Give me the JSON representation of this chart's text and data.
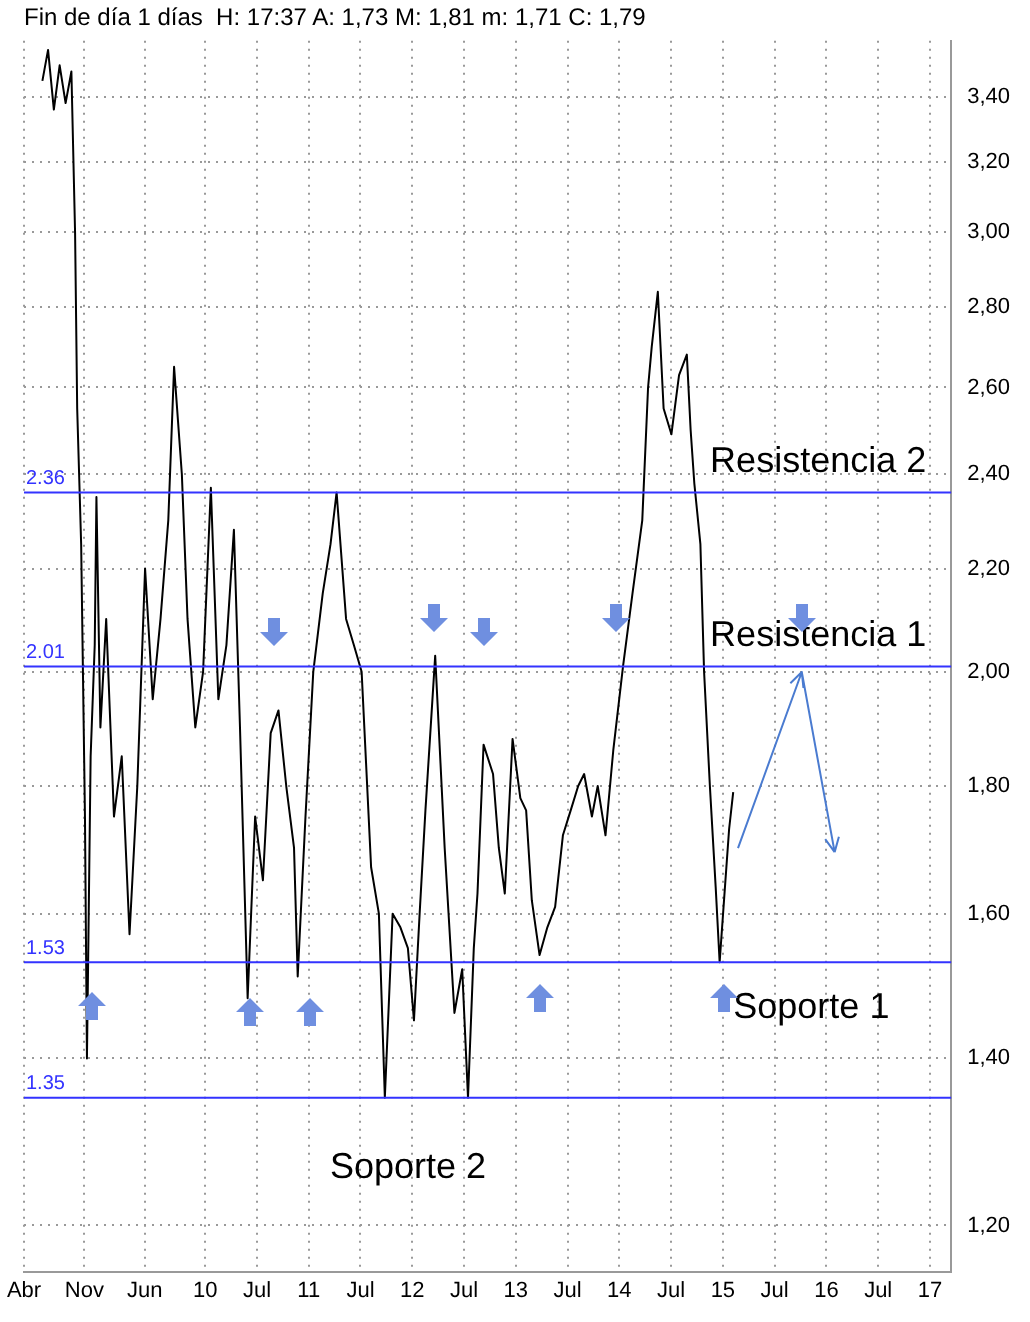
{
  "chart_data": {
    "type": "line",
    "title": "Fin de día 1 días  H: 17:37 A: 1,73 M: 1,81 m: 1,71 C: 1,79",
    "x": [
      "2008-06-05",
      "2008-06-25",
      "2008-07-15",
      "2008-08-05",
      "2008-08-26",
      "2008-09-16",
      "2008-09-29",
      "2008-10-06",
      "2008-10-20",
      "2008-11-03",
      "2008-11-10",
      "2008-11-23",
      "2008-12-07",
      "2008-12-13",
      "2008-12-27",
      "2009-01-17",
      "2009-02-14",
      "2009-03-11",
      "2009-04-08",
      "2009-05-05",
      "2009-06-02",
      "2009-06-29",
      "2009-07-26",
      "2009-08-23",
      "2009-09-13",
      "2009-10-10",
      "2009-10-30",
      "2009-11-27",
      "2009-12-24",
      "2010-01-21",
      "2010-02-17",
      "2010-03-15",
      "2010-04-11",
      "2010-05-02",
      "2010-05-29",
      "2010-06-25",
      "2010-07-22",
      "2010-08-19",
      "2010-09-16",
      "2010-10-13",
      "2010-11-10",
      "2010-11-23",
      "2010-12-20",
      "2011-01-17",
      "2011-02-20",
      "2011-03-17",
      "2011-04-08",
      "2011-05-11",
      "2011-06-08",
      "2011-07-05",
      "2011-08-08",
      "2011-09-05",
      "2011-09-26",
      "2011-10-23",
      "2011-11-20",
      "2011-12-16",
      "2012-01-07",
      "2012-01-27",
      "2012-02-17",
      "2012-03-21",
      "2012-04-24",
      "2012-05-28",
      "2012-06-25",
      "2012-07-15",
      "2012-08-05",
      "2012-08-18",
      "2012-09-09",
      "2012-10-12",
      "2012-11-02",
      "2012-11-23",
      "2012-12-20",
      "2013-01-17",
      "2013-02-07",
      "2013-02-27",
      "2013-03-24",
      "2013-04-21",
      "2013-05-18",
      "2013-06-15",
      "2013-07-12",
      "2013-08-08",
      "2013-08-29",
      "2013-09-26",
      "2013-10-16",
      "2013-11-13",
      "2013-12-10",
      "2014-01-14",
      "2014-02-17",
      "2014-03-21",
      "2014-04-11",
      "2014-04-24",
      "2014-05-15",
      "2014-06-05",
      "2014-07-02",
      "2014-07-29",
      "2014-08-26",
      "2014-09-09",
      "2014-09-22",
      "2014-10-13",
      "2014-10-26",
      "2014-11-16",
      "2014-12-06",
      "2014-12-20",
      "2015-01-10",
      "2015-01-23",
      "2015-02-07"
    ],
    "series": [
      {
        "color": "#000000",
        "values": [
          3.45,
          3.55,
          3.36,
          3.5,
          3.38,
          3.48,
          3.0,
          2.55,
          2.25,
          1.75,
          1.4,
          1.85,
          2.05,
          2.35,
          1.9,
          2.1,
          1.75,
          1.85,
          1.57,
          1.8,
          2.2,
          1.95,
          2.1,
          2.3,
          2.65,
          2.4,
          2.1,
          1.9,
          2.0,
          2.37,
          1.95,
          2.05,
          2.28,
          1.9,
          1.48,
          1.75,
          1.65,
          1.89,
          1.93,
          1.8,
          1.7,
          1.51,
          1.75,
          2.0,
          2.15,
          2.25,
          2.36,
          2.1,
          2.05,
          2.0,
          1.67,
          1.6,
          1.35,
          1.6,
          1.58,
          1.55,
          1.45,
          1.6,
          1.76,
          2.03,
          1.7,
          1.46,
          1.52,
          1.35,
          1.55,
          1.63,
          1.87,
          1.82,
          1.7,
          1.63,
          1.88,
          1.78,
          1.76,
          1.62,
          1.54,
          1.58,
          1.61,
          1.72,
          1.76,
          1.8,
          1.82,
          1.75,
          1.8,
          1.72,
          1.86,
          2.01,
          2.15,
          2.3,
          2.6,
          2.7,
          2.84,
          2.55,
          2.49,
          2.63,
          2.68,
          2.5,
          2.38,
          2.25,
          2.0,
          1.8,
          1.64,
          1.53,
          1.65,
          1.73,
          1.79
        ]
      }
    ],
    "xlim": [
      "2008-04-01",
      "2017-03-15"
    ],
    "xticks": [
      {
        "value": "2008-04",
        "label": "Abr"
      },
      {
        "value": "2008-11",
        "label": "Nov"
      },
      {
        "value": "2009-06",
        "label": "Jun"
      },
      {
        "value": "2010-01",
        "label": "10"
      },
      {
        "value": "2010-07",
        "label": "Jul"
      },
      {
        "value": "2011-01",
        "label": "11"
      },
      {
        "value": "2011-07",
        "label": "Jul"
      },
      {
        "value": "2012-01",
        "label": "12"
      },
      {
        "value": "2012-07",
        "label": "Jul"
      },
      {
        "value": "2013-01",
        "label": "13"
      },
      {
        "value": "2013-07",
        "label": "Jul"
      },
      {
        "value": "2014-01",
        "label": "14"
      },
      {
        "value": "2014-07",
        "label": "Jul"
      },
      {
        "value": "2015-01",
        "label": "15"
      },
      {
        "value": "2015-07",
        "label": "Jul"
      },
      {
        "value": "2016-01",
        "label": "16"
      },
      {
        "value": "2016-07",
        "label": "Jul"
      },
      {
        "value": "2017-01",
        "label": "17"
      }
    ],
    "ylim": [
      1.15,
      3.58
    ],
    "yticks": [
      {
        "value": 1.2,
        "label": "1,20"
      },
      {
        "value": 1.4,
        "label": "1,40"
      },
      {
        "value": 1.6,
        "label": "1,60"
      },
      {
        "value": 1.8,
        "label": "1,80"
      },
      {
        "value": 2.0,
        "label": "2,00"
      },
      {
        "value": 2.2,
        "label": "2,20"
      },
      {
        "value": 2.4,
        "label": "2,40"
      },
      {
        "value": 2.6,
        "label": "2,60"
      },
      {
        "value": 2.8,
        "label": "2,80"
      },
      {
        "value": 3.0,
        "label": "3,00"
      },
      {
        "value": 3.2,
        "label": "3,20"
      },
      {
        "value": 3.4,
        "label": "3,40"
      }
    ],
    "log": true,
    "grid": true,
    "marker": "none",
    "annotations": [
      {
        "text": "2.36",
        "y": 2.36
      },
      {
        "text": "2.01",
        "y": 2.01
      },
      {
        "text": "1.53",
        "y": 1.53
      },
      {
        "text": "1.35",
        "y": 1.35
      }
    ],
    "ref_lines": [
      {
        "axis": "y",
        "value": 2.36,
        "label": "Resistencia 2",
        "color": "#3333ff"
      },
      {
        "axis": "y",
        "value": 2.01,
        "label": "Resistencia 1",
        "color": "#3333ff"
      },
      {
        "axis": "y",
        "value": 1.53,
        "label": "Soporte 1",
        "color": "#3333ff"
      },
      {
        "axis": "y",
        "value": 1.35,
        "label": "Soporte 2",
        "color": "#3333ff"
      }
    ]
  }
}
